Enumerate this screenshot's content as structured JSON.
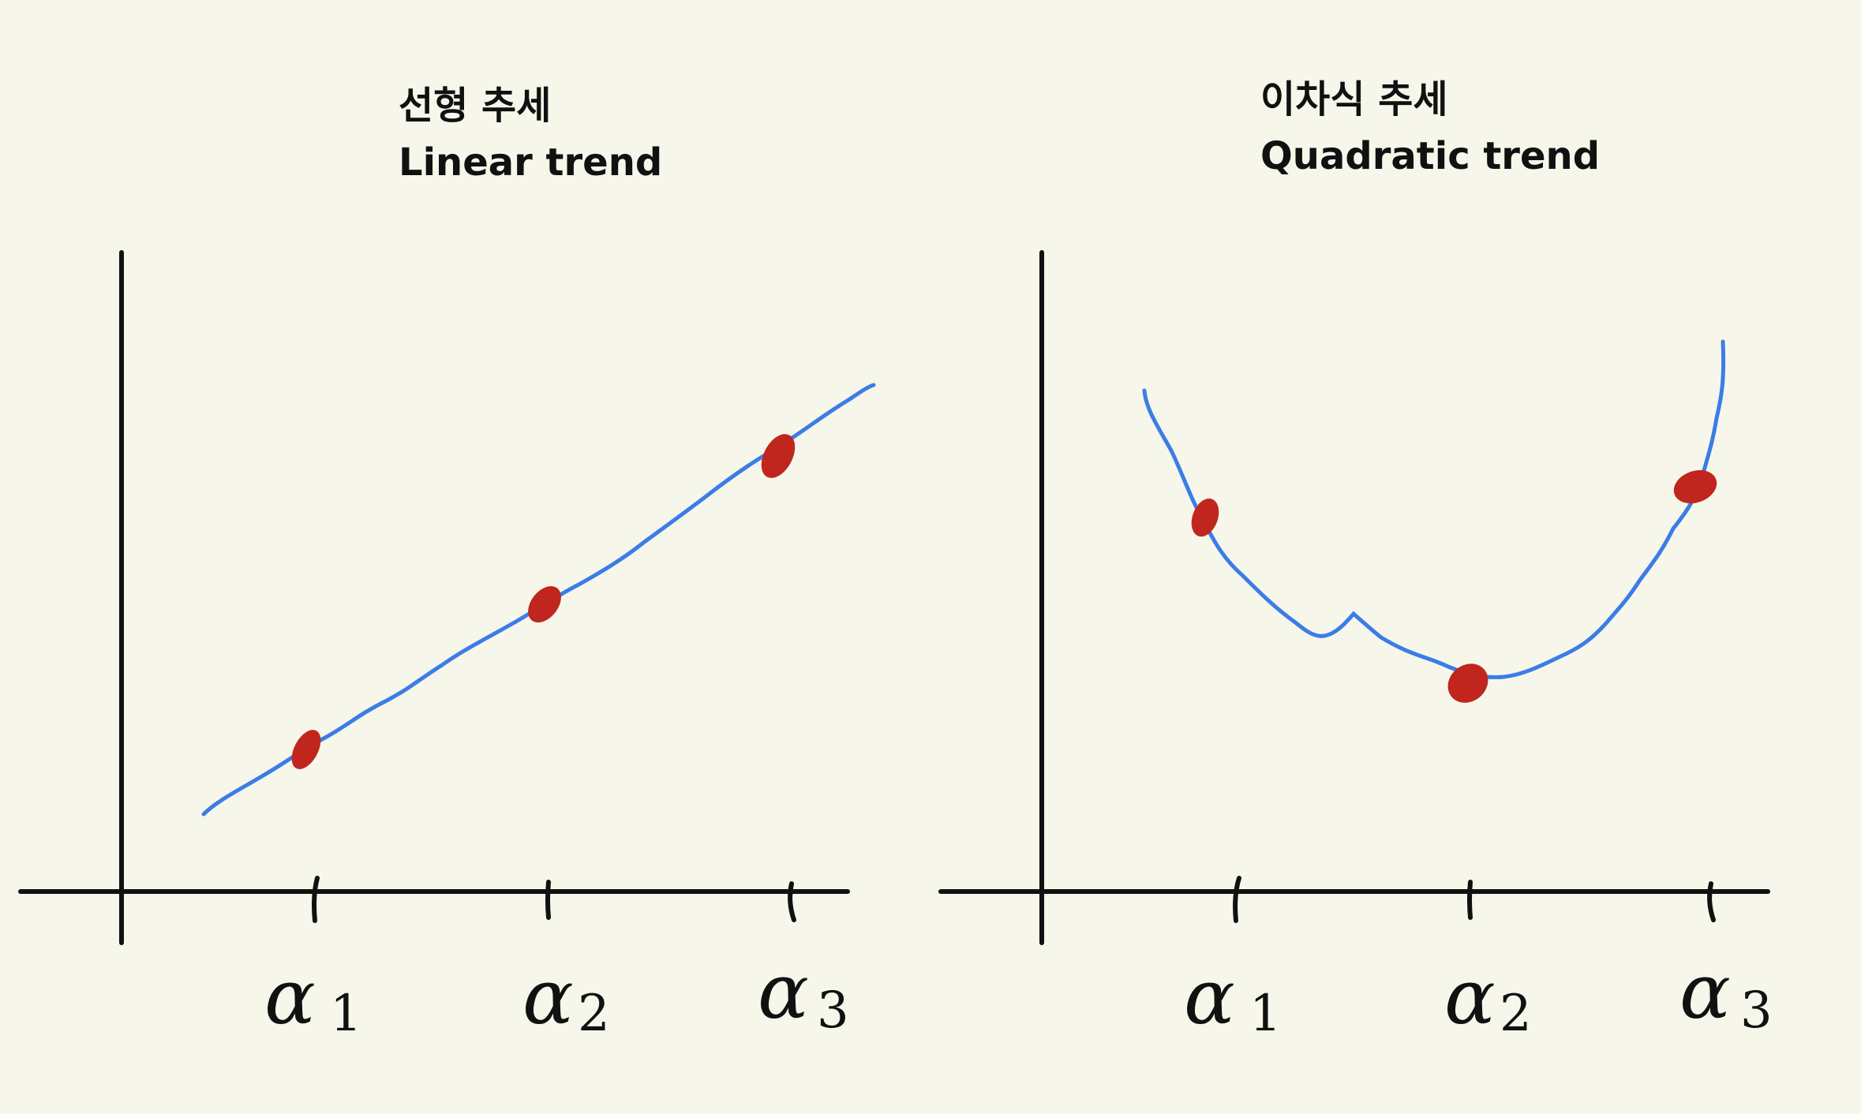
{
  "panels": [
    {
      "id": "linear",
      "title_ko": "선형 추세",
      "title_en": "Linear trend",
      "x_labels": [
        {
          "symbol": "α",
          "sub": "1"
        },
        {
          "symbol": "α",
          "sub": "2"
        },
        {
          "symbol": "α",
          "sub": "3"
        }
      ]
    },
    {
      "id": "quadratic",
      "title_ko": "이차식 추세",
      "title_en": "Quadratic trend",
      "x_labels": [
        {
          "symbol": "α",
          "sub": "1"
        },
        {
          "symbol": "α",
          "sub": "2"
        },
        {
          "symbol": "α",
          "sub": "3"
        }
      ]
    }
  ],
  "colors": {
    "background": "#f7f6ea",
    "axis": "#111111",
    "curve": "#3b7de6",
    "point": "#c0261d"
  }
}
